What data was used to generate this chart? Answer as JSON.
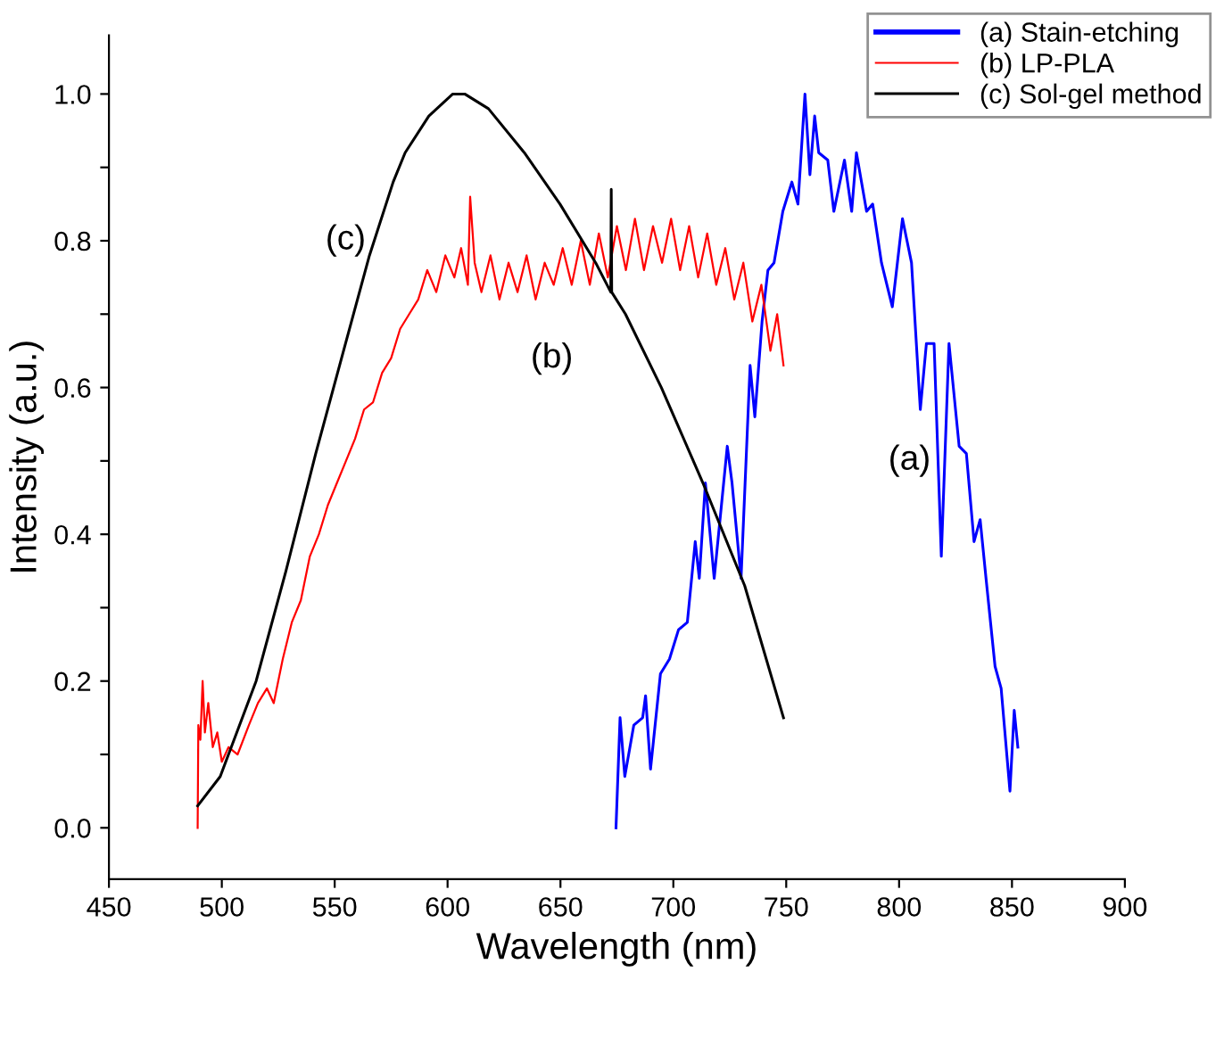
{
  "chart_data": {
    "type": "line",
    "xlabel": "Wavelength (nm)",
    "ylabel": "Intensity (a.u.)",
    "xlim": [
      450,
      900
    ],
    "xticks": [
      450,
      500,
      550,
      600,
      650,
      700,
      750,
      800,
      850,
      900
    ],
    "ylim": [
      -0.07,
      1.08
    ],
    "yticks": [
      {
        "value": 0.0,
        "label": "0.0"
      },
      {
        "value": 0.1,
        "label": null
      },
      {
        "value": 0.2,
        "label": "0.2"
      },
      {
        "value": 0.3,
        "label": null
      },
      {
        "value": 0.4,
        "label": "0.4"
      },
      {
        "value": 0.5,
        "label": null
      },
      {
        "value": 0.6,
        "label": "0.6"
      },
      {
        "value": 0.7,
        "label": null
      },
      {
        "value": 0.8,
        "label": "0.8"
      },
      {
        "value": 0.9,
        "label": null
      },
      {
        "value": 1.0,
        "label": "1.0"
      }
    ],
    "grid": false,
    "legend": "top right",
    "marker": "none",
    "line_style": "solid",
    "series": [
      {
        "name": "(a) Stain-etching",
        "color": "#0000ff",
        "x": [
          674.6,
          676.4,
          678.5,
          682.5,
          686.4,
          687.7,
          689.9,
          694.3,
          698.3,
          702.3,
          706.2,
          709.7,
          711.5,
          714.2,
          718.1,
          723.9,
          726.0,
          730.0,
          734.0,
          736.1,
          739.3,
          741.9,
          744.6,
          748.5,
          752.5,
          755.2,
          758.3,
          760.5,
          762.6,
          764.4,
          768.4,
          771.1,
          775.8,
          779.0,
          781.1,
          785.6,
          788.3,
          792.2,
          797.0,
          801.5,
          805.5,
          809.4,
          812.1,
          815.5,
          818.7,
          822.1,
          826.6,
          829.8,
          833.2,
          835.9,
          838.5,
          842.5,
          845.2,
          849.1,
          851.0,
          852.6
        ],
        "values": [
          0.0,
          0.15,
          0.07,
          0.14,
          0.15,
          0.18,
          0.08,
          0.21,
          0.23,
          0.27,
          0.28,
          0.39,
          0.34,
          0.47,
          0.34,
          0.52,
          0.47,
          0.34,
          0.63,
          0.56,
          0.69,
          0.76,
          0.77,
          0.84,
          0.88,
          0.85,
          1.0,
          0.89,
          0.97,
          0.92,
          0.91,
          0.84,
          0.91,
          0.84,
          0.92,
          0.84,
          0.85,
          0.77,
          0.71,
          0.83,
          0.77,
          0.57,
          0.66,
          0.66,
          0.37,
          0.66,
          0.52,
          0.51,
          0.39,
          0.42,
          0.34,
          0.22,
          0.19,
          0.05,
          0.16,
          0.11
        ]
      },
      {
        "name": "(b) LP-PLA",
        "color": "#ff0000",
        "x": [
          489.3,
          489.6,
          490.5,
          491.5,
          492.5,
          494,
          496,
          498,
          500,
          503,
          507,
          512,
          516,
          520,
          523,
          527,
          531,
          535,
          539,
          543,
          547,
          551,
          555,
          559,
          563,
          567,
          571,
          575,
          579,
          583,
          587,
          591,
          595,
          599,
          603,
          606,
          609,
          610,
          612,
          615,
          619,
          623,
          627,
          631,
          635,
          639,
          643,
          647,
          651,
          655,
          659,
          663,
          667,
          671,
          675,
          679,
          683,
          687,
          691,
          695,
          699,
          703,
          707,
          711,
          715,
          719,
          723,
          727,
          731,
          735,
          739,
          743,
          746,
          748.8
        ],
        "values": [
          0.0,
          0.14,
          0.12,
          0.2,
          0.13,
          0.17,
          0.11,
          0.13,
          0.09,
          0.11,
          0.1,
          0.14,
          0.17,
          0.19,
          0.17,
          0.23,
          0.28,
          0.31,
          0.37,
          0.4,
          0.44,
          0.47,
          0.5,
          0.53,
          0.57,
          0.58,
          0.62,
          0.64,
          0.68,
          0.7,
          0.72,
          0.76,
          0.73,
          0.78,
          0.75,
          0.79,
          0.74,
          0.86,
          0.77,
          0.73,
          0.78,
          0.72,
          0.77,
          0.73,
          0.78,
          0.72,
          0.77,
          0.74,
          0.79,
          0.74,
          0.8,
          0.74,
          0.81,
          0.75,
          0.82,
          0.76,
          0.83,
          0.76,
          0.82,
          0.77,
          0.83,
          0.76,
          0.82,
          0.75,
          0.81,
          0.74,
          0.79,
          0.72,
          0.77,
          0.69,
          0.74,
          0.65,
          0.7,
          0.63
        ]
      },
      {
        "name": "(c) Sol-gel method",
        "color": "#000000",
        "x": [
          489.3,
          499.3,
          515.2,
          528.4,
          541.6,
          554.8,
          565.4,
          575.9,
          581.2,
          591.7,
          602.3,
          607.6,
          618.1,
          634,
          649.8,
          665.6,
          672.3,
          672.5,
          672.7,
          678.8,
          694.7,
          713.1,
          731.6,
          748.8
        ],
        "values": [
          0.03,
          0.07,
          0.2,
          0.35,
          0.51,
          0.66,
          0.78,
          0.88,
          0.92,
          0.97,
          1.0,
          1.0,
          0.98,
          0.92,
          0.85,
          0.77,
          0.73,
          0.87,
          0.73,
          0.7,
          0.6,
          0.47,
          0.33,
          0.15
        ]
      }
    ],
    "annotations": [
      "(a)",
      "(b)",
      "(c)"
    ]
  }
}
